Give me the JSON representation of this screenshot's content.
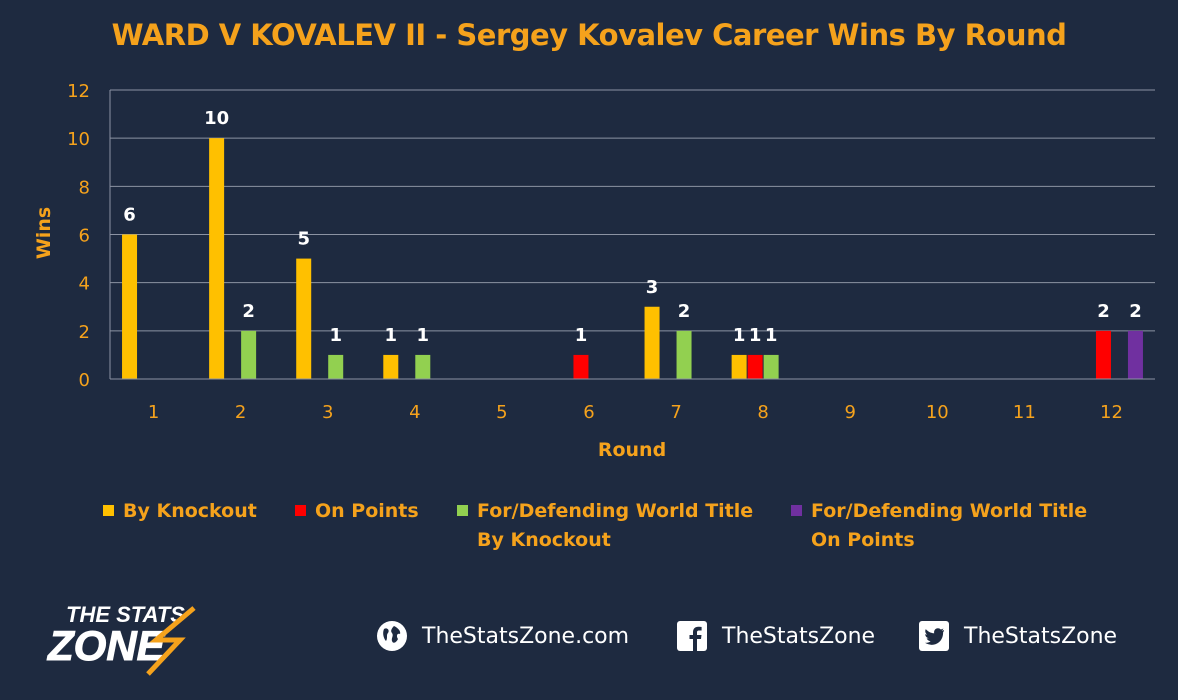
{
  "chart_data": {
    "type": "bar",
    "title": "WARD V KOVALEV II - Sergey Kovalev Career Wins By Round",
    "xlabel": "Round",
    "ylabel": "Wins",
    "ylim": [
      0,
      12
    ],
    "yticks": [
      "0",
      "2",
      "4",
      "6",
      "8",
      "10",
      "12"
    ],
    "grid": true,
    "legend_position": "bottom",
    "categories": [
      "1",
      "2",
      "3",
      "4",
      "5",
      "6",
      "7",
      "8",
      "9",
      "10",
      "11",
      "12"
    ],
    "series": [
      {
        "name": "By Knockout",
        "color": "#ffc000",
        "values": [
          6,
          10,
          5,
          1,
          0,
          0,
          3,
          1,
          0,
          0,
          0,
          0
        ]
      },
      {
        "name": "On Points",
        "color": "#ff0000",
        "values": [
          0,
          0,
          0,
          0,
          0,
          1,
          0,
          1,
          0,
          0,
          0,
          2
        ]
      },
      {
        "name": "For/Defending World Title\nBy Knockout",
        "color": "#92d050",
        "values": [
          0,
          2,
          1,
          1,
          0,
          0,
          2,
          1,
          0,
          0,
          0,
          0
        ]
      },
      {
        "name": "For/Defending World Title\nOn Points",
        "color": "#7030a0",
        "values": [
          0,
          0,
          0,
          0,
          0,
          0,
          0,
          0,
          0,
          0,
          0,
          2
        ]
      }
    ]
  },
  "footer": {
    "logo_top": "THE STATS",
    "logo_bottom": "ZONE",
    "website": "TheStatsZone.com",
    "facebook": "TheStatsZone",
    "twitter": "TheStatsZone",
    "website_icon": "globe-icon",
    "facebook_icon": "facebook-icon",
    "twitter_icon": "twitter-icon"
  },
  "colors": {
    "background": "#1e2a40",
    "accent": "#f5a21c",
    "gridline": "#8c93a3",
    "label_text": "#ffffff"
  }
}
